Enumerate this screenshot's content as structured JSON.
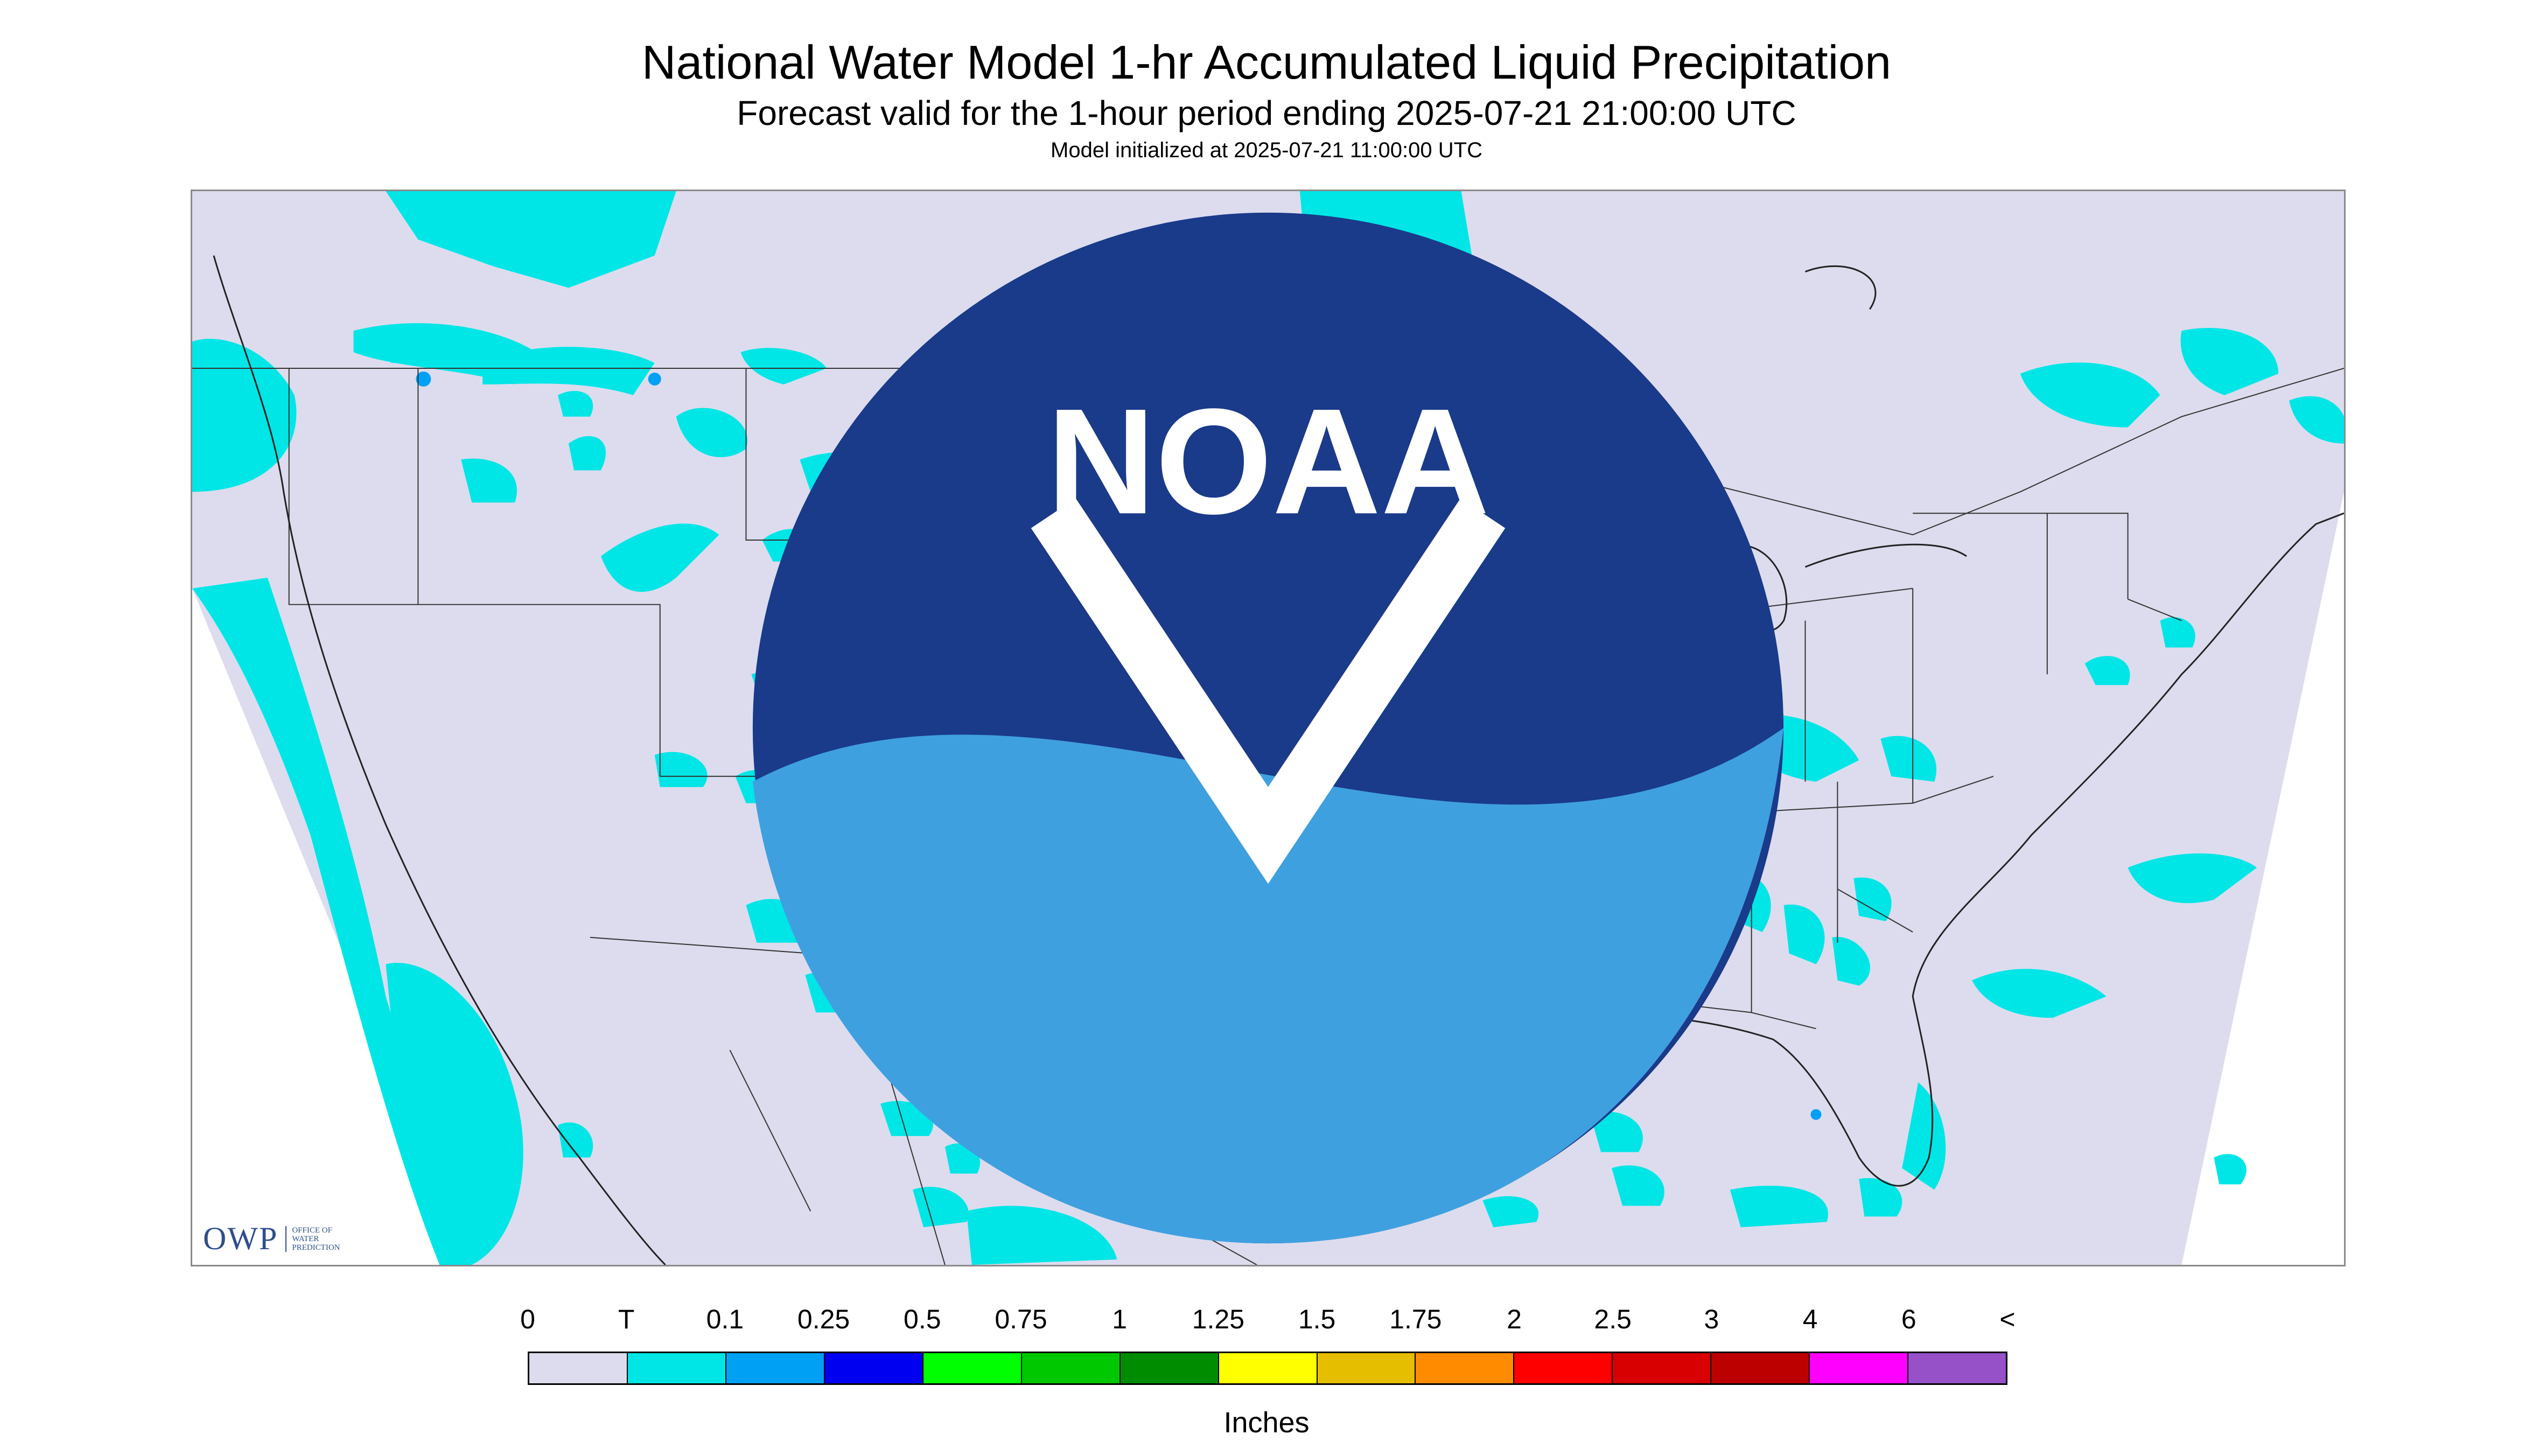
{
  "title": "National Water Model 1-hr Accumulated Liquid Precipitation",
  "subtitle": "Forecast valid for the 1-hour period ending 2025-07-21 21:00:00 UTC",
  "init_line": "Model initialized at 2025-07-21 11:00:00 UTC",
  "logo_left": {
    "word": "OWP",
    "sub_lines": [
      "OFFICE OF",
      "WATER",
      "PREDICTION"
    ]
  },
  "logo_right": {
    "icon": "noaa-logo-icon",
    "text": "NOAA"
  },
  "legend": {
    "units_label": "Inches",
    "tick_labels": [
      "0",
      "T",
      "0.1",
      "0.25",
      "0.5",
      "0.75",
      "1",
      "1.25",
      "1.5",
      "1.75",
      "2",
      "2.5",
      "3",
      "4",
      "6",
      "<"
    ],
    "colors": [
      "#dcdcee",
      "#00e6e6",
      "#00a0f5",
      "#0000f0",
      "#00ff00",
      "#00c800",
      "#008c00",
      "#ffff00",
      "#e6be00",
      "#ff8c00",
      "#ff0000",
      "#d80000",
      "#bc0000",
      "#ff00ff",
      "#9650c8"
    ]
  },
  "colors": {
    "map_background": "#dcdcee",
    "trace_precip": "#00e6e6",
    "light_precip": "#00a0f5",
    "moderate_precip": "#0000f0",
    "boundary_line": "#333333",
    "logo_blue": "#2e4f8c"
  }
}
